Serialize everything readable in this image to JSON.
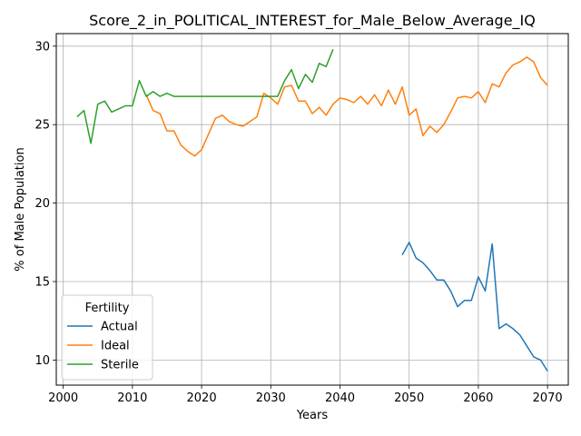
{
  "chart_data": {
    "type": "line",
    "title": "Score_2_in_POLITICAL_INTEREST_for_Male_Below_Average_IQ",
    "xlabel": "Years",
    "ylabel": "% of Male Population",
    "xlim": [
      1999,
      2073
    ],
    "ylim": [
      8.4,
      30.8
    ],
    "xticks": [
      2000,
      2010,
      2020,
      2030,
      2040,
      2050,
      2060,
      2070
    ],
    "yticks": [
      10,
      15,
      20,
      25,
      30
    ],
    "grid": true,
    "legend": {
      "title": "Fertility",
      "placement": "lower-left"
    },
    "series": [
      {
        "name": "Actual",
        "color": "#1f77b4",
        "x": [
          2049,
          2050,
          2051,
          2052,
          2053,
          2054,
          2055,
          2056,
          2057,
          2058,
          2059,
          2060,
          2061,
          2062,
          2063,
          2064,
          2065,
          2066,
          2067,
          2068,
          2069,
          2070
        ],
        "y": [
          16.7,
          17.5,
          16.5,
          16.2,
          15.7,
          15.1,
          15.1,
          14.4,
          13.4,
          13.8,
          13.8,
          15.3,
          14.4,
          17.4,
          12.0,
          12.3,
          12.0,
          11.6,
          10.9,
          10.2,
          10.0,
          9.3
        ]
      },
      {
        "name": "Ideal",
        "color": "#ff7f0e",
        "x": [
          2012,
          2013,
          2014,
          2015,
          2016,
          2017,
          2018,
          2019,
          2020,
          2021,
          2022,
          2023,
          2024,
          2025,
          2026,
          2027,
          2028,
          2029,
          2030,
          2031,
          2032,
          2033,
          2034,
          2035,
          2036,
          2037,
          2038,
          2039,
          2040,
          2041,
          2042,
          2043,
          2044,
          2045,
          2046,
          2047,
          2048,
          2049,
          2050,
          2051,
          2052,
          2053,
          2054,
          2055,
          2056,
          2057,
          2058,
          2059,
          2060,
          2061,
          2062,
          2063,
          2064,
          2065,
          2066,
          2067,
          2068,
          2069,
          2070
        ],
        "y": [
          26.9,
          25.9,
          25.7,
          24.6,
          24.6,
          23.7,
          23.3,
          23.0,
          23.4,
          24.4,
          25.4,
          25.6,
          25.2,
          25.0,
          24.9,
          25.2,
          25.5,
          27.0,
          26.7,
          26.3,
          27.4,
          27.5,
          26.5,
          26.5,
          25.7,
          26.1,
          25.6,
          26.3,
          26.7,
          26.6,
          26.4,
          26.8,
          26.3,
          26.9,
          26.2,
          27.2,
          26.3,
          27.4,
          25.6,
          26.0,
          24.3,
          24.9,
          24.5,
          25.0,
          25.8,
          26.7,
          26.8,
          26.7,
          27.1,
          26.4,
          27.6,
          27.4,
          28.3,
          28.8,
          29.0,
          29.3,
          29.0,
          28.0,
          27.5
        ]
      },
      {
        "name": "Sterile",
        "color": "#2ca02c",
        "x": [
          2002,
          2003,
          2004,
          2005,
          2006,
          2007,
          2008,
          2009,
          2010,
          2011,
          2012,
          2013,
          2014,
          2015,
          2016,
          2017,
          2018,
          2019,
          2020,
          2021,
          2022,
          2023,
          2024,
          2025,
          2026,
          2027,
          2028,
          2029,
          2030,
          2031,
          2032,
          2033,
          2034,
          2035,
          2036,
          2037,
          2038,
          2039
        ],
        "y": [
          25.5,
          25.9,
          23.8,
          26.3,
          26.5,
          25.8,
          26.0,
          26.2,
          26.2,
          27.8,
          26.8,
          27.1,
          26.8,
          27.0,
          26.8,
          26.8,
          26.8,
          26.8,
          26.8,
          26.8,
          26.8,
          26.8,
          26.8,
          26.8,
          26.8,
          26.8,
          26.8,
          26.8,
          26.8,
          26.8,
          27.8,
          28.5,
          27.3,
          28.2,
          27.7,
          28.9,
          28.7,
          29.8
        ]
      }
    ]
  }
}
